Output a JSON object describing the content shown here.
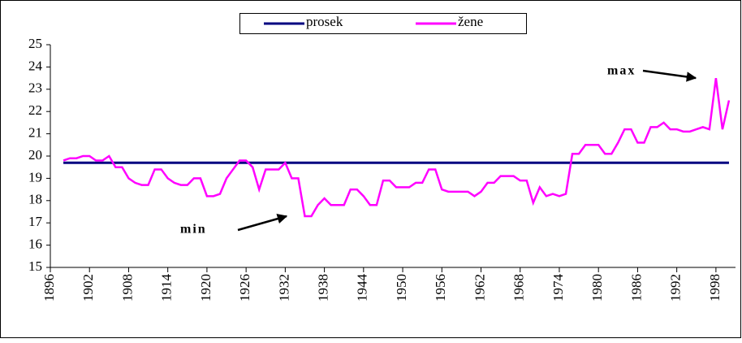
{
  "chart_data": {
    "type": "line",
    "xlim": [
      1896,
      2001
    ],
    "ylim": [
      15,
      25
    ],
    "xticks": [
      1896,
      1902,
      1908,
      1914,
      1920,
      1926,
      1932,
      1938,
      1944,
      1950,
      1956,
      1962,
      1968,
      1974,
      1980,
      1986,
      1992,
      1998
    ],
    "yticks": [
      15,
      16,
      17,
      18,
      19,
      20,
      21,
      22,
      23,
      24,
      25
    ],
    "grid": false,
    "legend": "top",
    "series": [
      {
        "name": "prosek",
        "color": "#000080",
        "x": [
          1898,
          2000
        ],
        "values": [
          19.7,
          19.7
        ]
      },
      {
        "name": "žene",
        "color": "#ff00ff",
        "x": [
          1898,
          1899,
          1900,
          1901,
          1902,
          1903,
          1904,
          1905,
          1906,
          1907,
          1908,
          1909,
          1910,
          1911,
          1912,
          1913,
          1914,
          1915,
          1916,
          1917,
          1918,
          1919,
          1920,
          1921,
          1922,
          1923,
          1924,
          1925,
          1926,
          1927,
          1928,
          1929,
          1930,
          1931,
          1932,
          1933,
          1934,
          1935,
          1936,
          1937,
          1938,
          1939,
          1940,
          1941,
          1942,
          1943,
          1944,
          1945,
          1946,
          1947,
          1948,
          1949,
          1950,
          1951,
          1952,
          1953,
          1954,
          1955,
          1956,
          1957,
          1958,
          1959,
          1960,
          1961,
          1962,
          1963,
          1964,
          1965,
          1966,
          1967,
          1968,
          1969,
          1970,
          1971,
          1972,
          1973,
          1974,
          1975,
          1976,
          1977,
          1978,
          1979,
          1980,
          1981,
          1982,
          1983,
          1984,
          1985,
          1986,
          1987,
          1988,
          1989,
          1990,
          1991,
          1992,
          1993,
          1994,
          1995,
          1996,
          1997,
          1998,
          1999,
          2000
        ],
        "values": [
          19.8,
          19.9,
          19.9,
          20.0,
          20.0,
          19.8,
          19.8,
          20.0,
          19.5,
          19.5,
          19.0,
          18.8,
          18.7,
          18.7,
          19.4,
          19.4,
          19.0,
          18.8,
          18.7,
          18.7,
          19.0,
          19.0,
          18.2,
          18.2,
          18.3,
          19.0,
          19.4,
          19.8,
          19.8,
          19.5,
          18.5,
          19.4,
          19.4,
          19.4,
          19.7,
          19.0,
          19.0,
          17.3,
          17.3,
          17.8,
          18.1,
          17.8,
          17.8,
          17.8,
          18.5,
          18.5,
          18.2,
          17.8,
          17.8,
          18.9,
          18.9,
          18.6,
          18.6,
          18.6,
          18.8,
          18.8,
          19.4,
          19.4,
          18.5,
          18.4,
          18.4,
          18.4,
          18.4,
          18.2,
          18.4,
          18.8,
          18.8,
          19.1,
          19.1,
          19.1,
          18.9,
          18.9,
          17.9,
          18.6,
          18.2,
          18.3,
          18.2,
          18.3,
          20.1,
          20.1,
          20.5,
          20.5,
          20.5,
          20.1,
          20.1,
          20.6,
          21.2,
          21.2,
          20.6,
          20.6,
          21.3,
          21.3,
          21.5,
          21.2,
          21.2,
          21.1,
          21.1,
          21.2,
          21.3,
          21.2,
          23.5,
          21.2,
          22.5
        ]
      }
    ],
    "annotations": [
      "max",
      "min"
    ]
  }
}
